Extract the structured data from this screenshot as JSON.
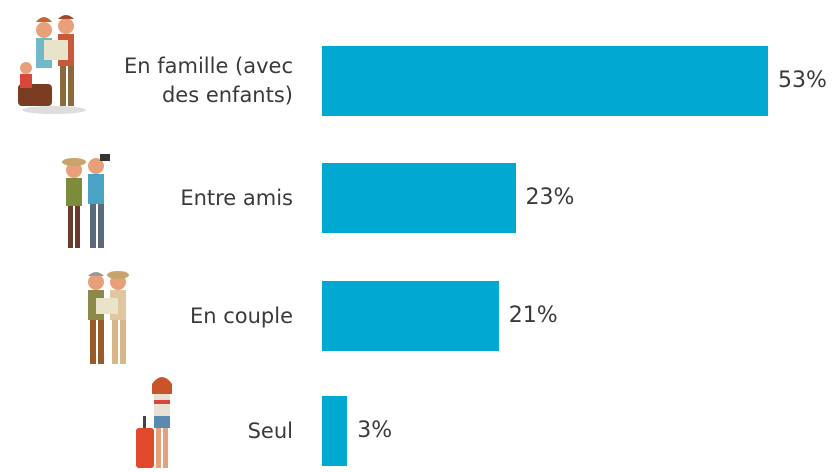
{
  "chart_data": {
    "type": "bar",
    "orientation": "horizontal",
    "categories": [
      "En famille (avec des enfants)",
      "Entre amis",
      "En couple",
      "Seul"
    ],
    "values": [
      53,
      23,
      21,
      3
    ],
    "value_labels": [
      "53%",
      "23%",
      "21%",
      "3%"
    ],
    "color": "#00a9d1"
  }
}
